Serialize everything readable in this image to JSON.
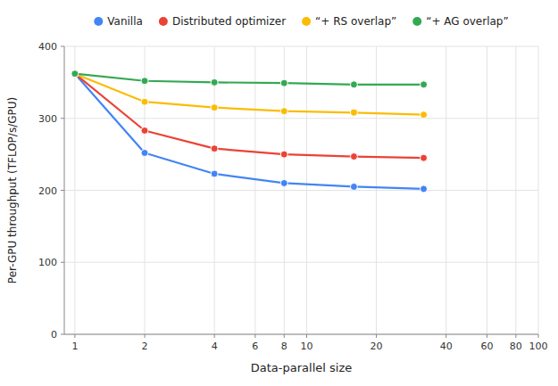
{
  "chart_data": {
    "type": "line",
    "x": [
      1,
      2,
      4,
      8,
      16,
      32
    ],
    "series": [
      {
        "name": "Vanilla",
        "color": "#4285F4",
        "marker": "circle",
        "values": [
          362,
          252,
          223,
          210,
          205,
          202
        ]
      },
      {
        "name": "Distributed optimizer",
        "color": "#EA4335",
        "marker": "circle",
        "values": [
          362,
          283,
          258,
          250,
          247,
          245
        ]
      },
      {
        "name": "“+ RS overlap”",
        "color": "#FBBC04",
        "marker": "circle",
        "values": [
          362,
          323,
          315,
          310,
          308,
          305
        ]
      },
      {
        "name": "“+ AG overlap”",
        "color": "#34A853",
        "marker": "circle",
        "values": [
          362,
          352,
          350,
          349,
          347,
          347
        ]
      }
    ],
    "xlabel": "Data-parallel size",
    "ylabel": "Per-GPU throughput (TFLOP/s/GPU)",
    "xlim": [
      0.9,
      100
    ],
    "xticks": [
      1,
      2,
      4,
      6,
      8,
      10,
      20,
      40,
      60,
      80,
      100
    ],
    "ylim": [
      0,
      400
    ],
    "yticks": [
      0,
      100,
      200,
      300,
      400
    ],
    "log": "x",
    "grid": true,
    "legend": "top"
  }
}
